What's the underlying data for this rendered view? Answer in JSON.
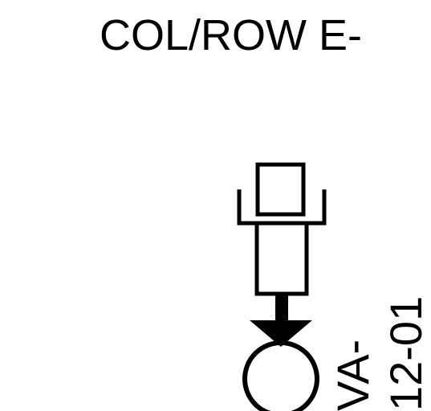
{
  "header": {
    "title": "COL/ROW E-"
  },
  "labels": {
    "tag_line_1": "VA-",
    "tag_line_2": "12-01"
  },
  "colors": {
    "ink": "#000000",
    "paper": "#ffffff"
  }
}
